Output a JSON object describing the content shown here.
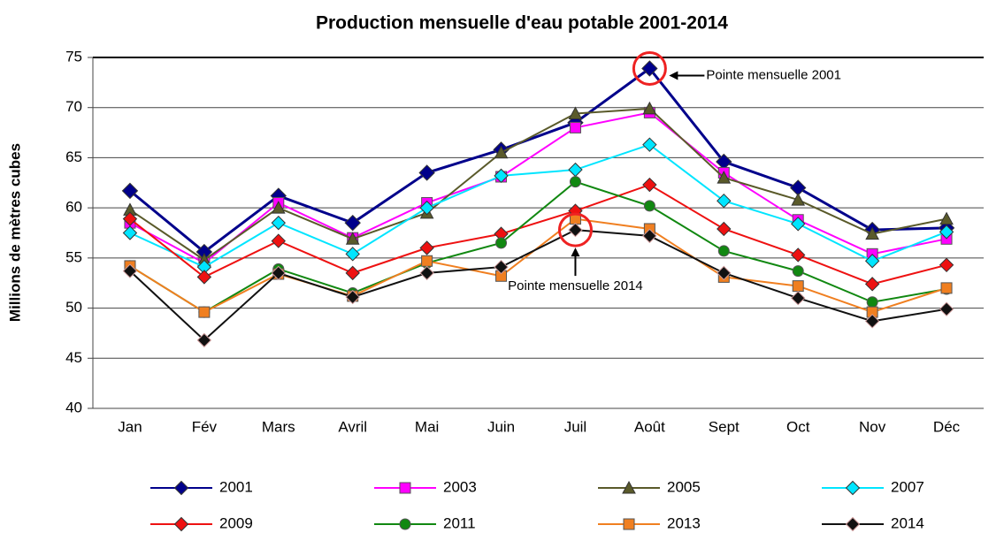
{
  "chart_data": {
    "type": "line",
    "title": "Production mensuelle d'eau potable 2001-2014",
    "ylabel": "Millions de mètres cubes",
    "categories": [
      "Jan",
      "Fév",
      "Mars",
      "Avril",
      "Mai",
      "Juin",
      "Juil",
      "Août",
      "Sept",
      "Oct",
      "Nov",
      "Déc"
    ],
    "ylim": [
      40,
      75
    ],
    "yticks": [
      40,
      45,
      50,
      55,
      60,
      65,
      70,
      75
    ],
    "grid": true,
    "legend": "bottom",
    "annotations": [
      "Pointe mensuelle 2001",
      "Pointe mensuelle 2014"
    ],
    "series": [
      {
        "name": "2001",
        "color": "#00008b",
        "marker": "diamond",
        "values": [
          61.7,
          55.6,
          61.2,
          58.5,
          63.5,
          65.8,
          68.5,
          73.9,
          64.6,
          62.0,
          57.8,
          58.0
        ]
      },
      {
        "name": "2003",
        "color": "#ff00ff",
        "marker": "square",
        "values": [
          58.5,
          54.5,
          60.5,
          57.0,
          60.5,
          63.1,
          68.0,
          69.5,
          63.5,
          58.8,
          55.4,
          56.9
        ]
      },
      {
        "name": "2005",
        "color": "#5a5a2a",
        "marker": "triangle",
        "values": [
          59.8,
          54.8,
          60.0,
          56.9,
          59.5,
          65.5,
          69.4,
          69.9,
          63.0,
          60.8,
          57.4,
          58.9
        ]
      },
      {
        "name": "2007",
        "color": "#00e5ff",
        "marker": "diamond",
        "values": [
          57.5,
          54.1,
          58.5,
          55.4,
          60.0,
          63.2,
          63.8,
          66.3,
          60.7,
          58.4,
          54.7,
          57.6
        ]
      },
      {
        "name": "2009",
        "color": "#ee1111",
        "marker": "diamond",
        "values": [
          58.9,
          53.1,
          56.7,
          53.5,
          56.0,
          57.4,
          59.7,
          62.3,
          57.9,
          55.3,
          52.4,
          54.3
        ]
      },
      {
        "name": "2011",
        "color": "#118811",
        "marker": "circle",
        "values": [
          54.2,
          49.6,
          53.9,
          51.5,
          54.5,
          56.5,
          62.6,
          60.2,
          55.7,
          53.7,
          50.6,
          51.9
        ]
      },
      {
        "name": "2013",
        "color": "#f07f20",
        "marker": "square",
        "values": [
          54.2,
          49.6,
          53.4,
          51.2,
          54.7,
          53.2,
          58.9,
          57.9,
          53.1,
          52.2,
          49.6,
          52.0
        ]
      },
      {
        "name": "2014",
        "color": "#111111",
        "marker": "diamond",
        "values": [
          53.7,
          46.8,
          53.5,
          51.1,
          53.5,
          54.1,
          57.8,
          57.2,
          53.5,
          51.0,
          48.7,
          49.9
        ]
      }
    ]
  }
}
